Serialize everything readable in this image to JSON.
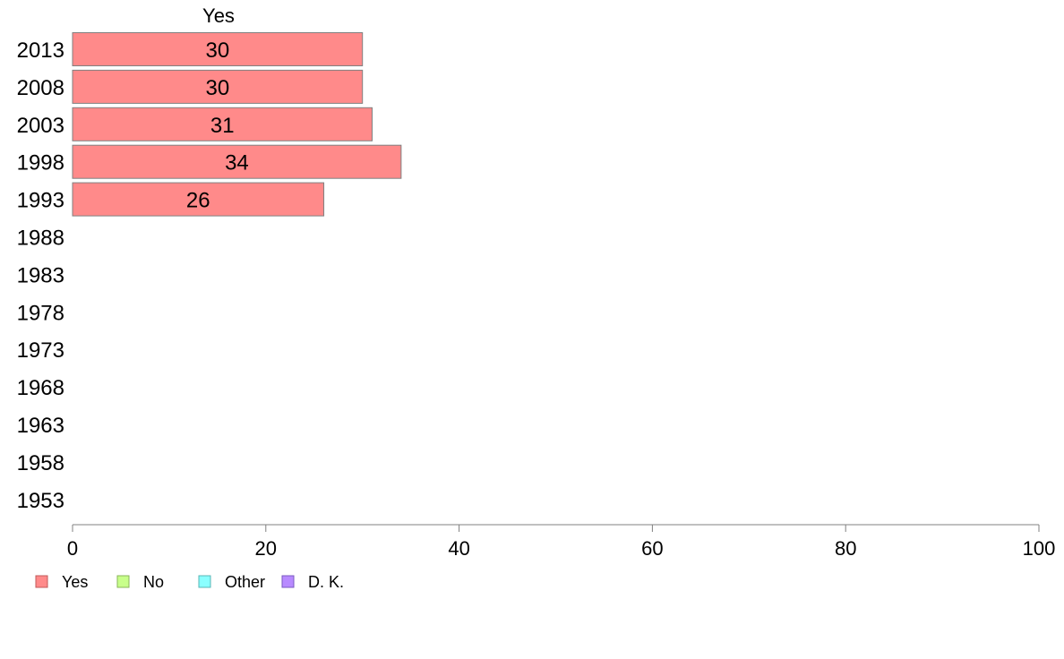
{
  "chart_data": {
    "type": "bar",
    "orientation": "horizontal",
    "categories": [
      "2013",
      "2008",
      "2003",
      "1998",
      "1993",
      "1988",
      "1983",
      "1978",
      "1973",
      "1968",
      "1963",
      "1958",
      "1953"
    ],
    "series": [
      {
        "name": "Yes",
        "color": "#ff8a8a",
        "values": [
          30,
          30,
          31,
          34,
          26,
          null,
          null,
          null,
          null,
          null,
          null,
          null,
          null
        ]
      }
    ],
    "series_header": "Yes",
    "xlim": [
      0,
      100
    ],
    "xticks": [
      "0",
      "20",
      "40",
      "60",
      "80",
      "100"
    ],
    "grid": false,
    "legend_position": "bottom-left",
    "legend": [
      {
        "label": "Yes",
        "color": "#ff8a8a",
        "border": "#c05a5a"
      },
      {
        "label": "No",
        "color": "#c8ff8a",
        "border": "#8ab55a"
      },
      {
        "label": "Other",
        "color": "#8affff",
        "border": "#5ab5b5"
      },
      {
        "label": "D. K.",
        "color": "#b88aff",
        "border": "#7a5ac0"
      }
    ]
  }
}
